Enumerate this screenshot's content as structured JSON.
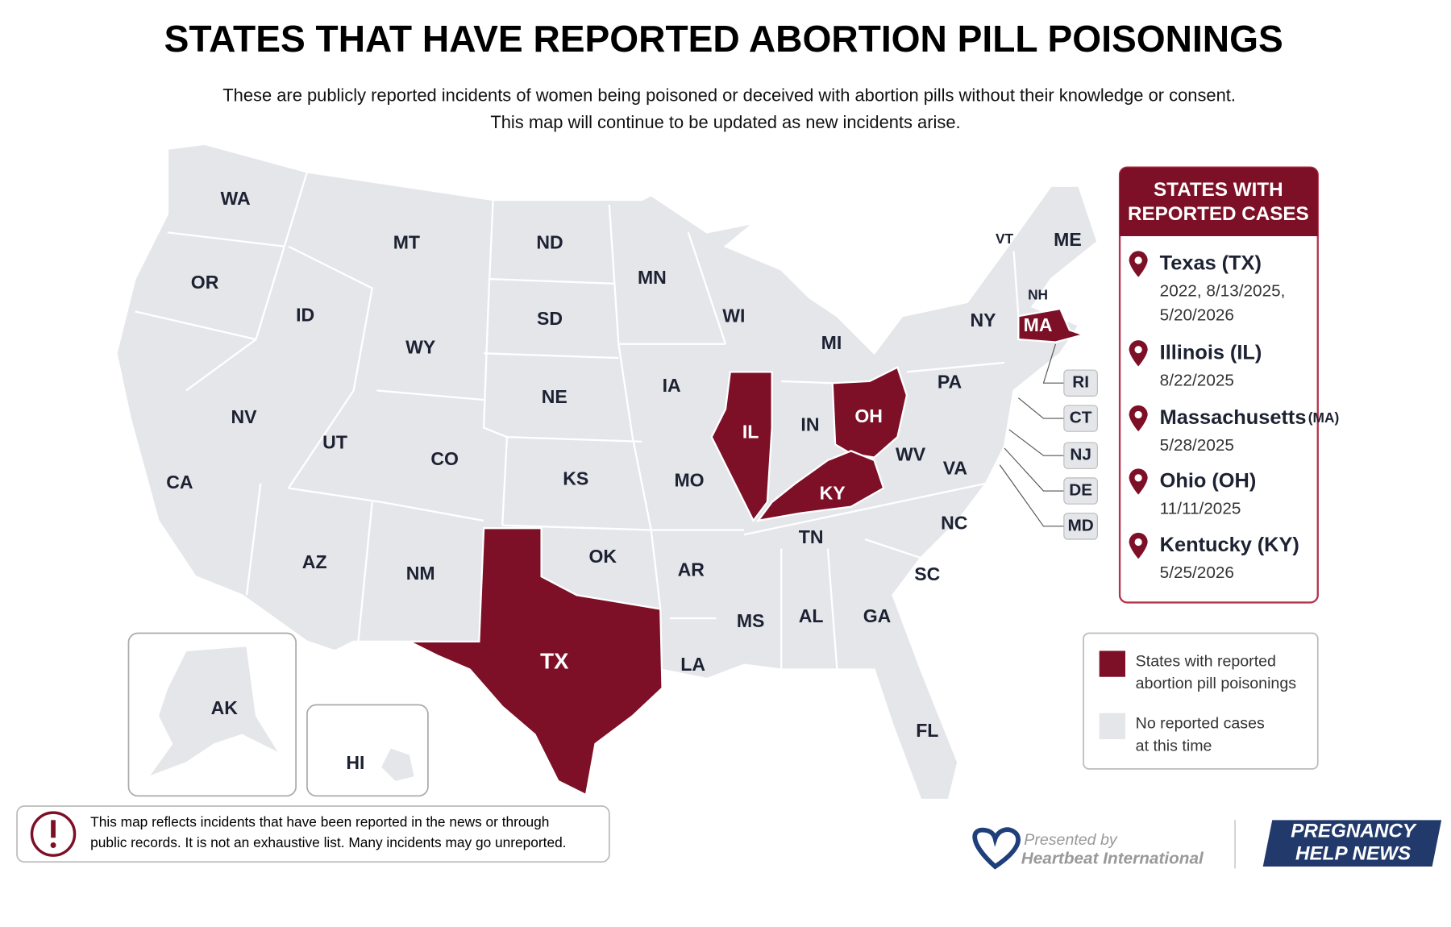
{
  "header": {
    "title": "STATES THAT HAVE REPORTED ABORTION PILL POISONINGS",
    "subtitle": [
      "These are publicly reported incidents of women being poisoned or deceived with abortion pills without their knowledge or consent.",
      "This map will continue to be updated as new incidents arise."
    ]
  },
  "map": {
    "highlight_color": "#7d0f26",
    "base_color": "#e4e6ea",
    "states": [
      {
        "label": "WA",
        "reported": false
      },
      {
        "label": "OR",
        "reported": false
      },
      {
        "label": "CA",
        "reported": false
      },
      {
        "label": "NV",
        "reported": false
      },
      {
        "label": "ID",
        "reported": false
      },
      {
        "label": "MT",
        "reported": false
      },
      {
        "label": "WY",
        "reported": false
      },
      {
        "label": "UT",
        "reported": false
      },
      {
        "label": "CO",
        "reported": false
      },
      {
        "label": "AZ",
        "reported": false
      },
      {
        "label": "NM",
        "reported": false
      },
      {
        "label": "ND",
        "reported": false
      },
      {
        "label": "SD",
        "reported": false
      },
      {
        "label": "NE",
        "reported": false
      },
      {
        "label": "KS",
        "reported": false
      },
      {
        "label": "OK",
        "reported": false
      },
      {
        "label": "TX",
        "reported": true
      },
      {
        "label": "MN",
        "reported": false
      },
      {
        "label": "IA",
        "reported": false
      },
      {
        "label": "MO",
        "reported": false
      },
      {
        "label": "AR",
        "reported": false
      },
      {
        "label": "LA",
        "reported": false
      },
      {
        "label": "WI",
        "reported": false
      },
      {
        "label": "IL",
        "reported": true
      },
      {
        "label": "MI",
        "reported": false
      },
      {
        "label": "IN",
        "reported": false
      },
      {
        "label": "OH",
        "reported": true
      },
      {
        "label": "KY",
        "reported": true
      },
      {
        "label": "TN",
        "reported": false
      },
      {
        "label": "MS",
        "reported": false
      },
      {
        "label": "AL",
        "reported": false
      },
      {
        "label": "GA",
        "reported": false
      },
      {
        "label": "FL",
        "reported": false
      },
      {
        "label": "SC",
        "reported": false
      },
      {
        "label": "NC",
        "reported": false
      },
      {
        "label": "VA",
        "reported": false
      },
      {
        "label": "WV",
        "reported": false
      },
      {
        "label": "PA",
        "reported": false
      },
      {
        "label": "NY",
        "reported": false
      },
      {
        "label": "VT",
        "reported": false
      },
      {
        "label": "NH",
        "reported": false
      },
      {
        "label": "ME",
        "reported": false
      },
      {
        "label": "MA",
        "reported": true
      },
      {
        "label": "RI",
        "reported": false
      },
      {
        "label": "CT",
        "reported": false
      },
      {
        "label": "NJ",
        "reported": false
      },
      {
        "label": "DE",
        "reported": false
      },
      {
        "label": "MD",
        "reported": false
      },
      {
        "label": "AK",
        "reported": false
      },
      {
        "label": "HI",
        "reported": false
      }
    ]
  },
  "sidebar": {
    "title": [
      "STATES WITH",
      "REPORTED CASES"
    ],
    "items": [
      {
        "name": "Texas",
        "code": "(TX)",
        "dates": [
          "2022, 8/13/2025,",
          "5/20/2026"
        ]
      },
      {
        "name": "Illinois",
        "code": "(IL)",
        "dates": [
          "8/22/2025"
        ]
      },
      {
        "name": "Massachusetts",
        "code": "(MA)",
        "dates": [
          "5/28/2025"
        ]
      },
      {
        "name": "Ohio",
        "code": "(OH)",
        "dates": [
          "11/11/2025"
        ]
      },
      {
        "name": "Kentucky",
        "code": "(KY)",
        "dates": [
          "5/25/2026"
        ]
      }
    ]
  },
  "legend": [
    {
      "lines": [
        "States with reported",
        "abortion pill poisonings"
      ],
      "reported": true
    },
    {
      "lines": [
        "No reported cases",
        "at this time"
      ],
      "reported": false
    }
  ],
  "note": [
    "This map reflects incidents that have been reported in the news or through",
    "public records. It is not an exhaustive list. Many incidents may go unreported."
  ],
  "footer": {
    "presented": "Presented by",
    "org": "Heartbeat International",
    "brand": [
      "PREGNANCY",
      "HELP NEWS"
    ]
  }
}
